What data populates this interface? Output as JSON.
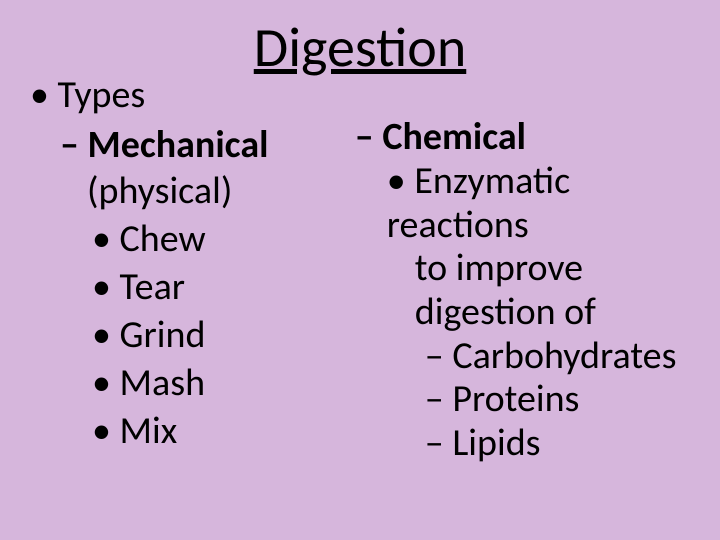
{
  "background_color": "#d6b6dc",
  "text_color": "#000000",
  "title": "Digestion",
  "left": {
    "types_label": "Types",
    "mechanical_label": "Mechanical",
    "mechanical_sub": "(physical)",
    "items": [
      "Chew",
      "Tear",
      "Grind",
      "Mash",
      "Mix"
    ]
  },
  "right": {
    "chemical_label": "Chemical",
    "enzymatic_line1": "Enzymatic reactions",
    "enzymatic_line2": "to improve",
    "enzymatic_line3": "digestion of",
    "targets": [
      "Carbohydrates",
      "Proteins",
      "Lipids"
    ]
  }
}
